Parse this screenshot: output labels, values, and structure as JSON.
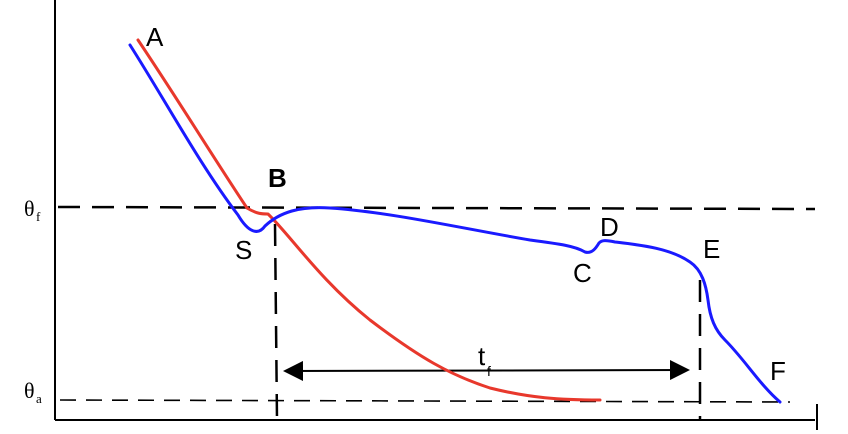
{
  "colors": {
    "blue_curve": "#1a1aff",
    "red_curve": "#e8382c",
    "lines": "#000000"
  },
  "labels": {
    "A": "A",
    "B": "B",
    "S": "S",
    "C": "C",
    "D": "D",
    "E": "E",
    "F": "F",
    "theta": "θ",
    "theta_f_sub": "f",
    "theta_a_sub": "a",
    "t": "t",
    "t_sub": "f"
  }
}
